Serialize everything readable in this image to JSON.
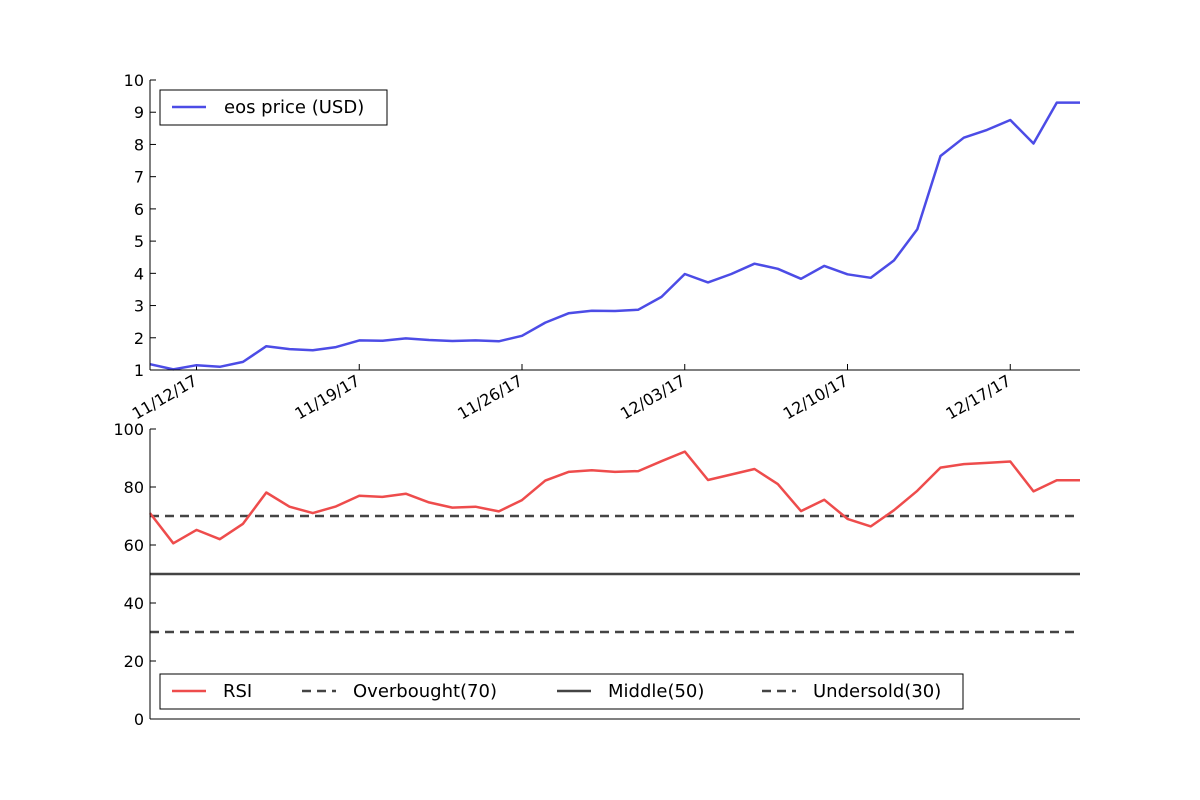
{
  "chart_data": [
    {
      "type": "line",
      "panel": "price",
      "x_dates": [
        "11/10/17",
        "11/11/17",
        "11/12/17",
        "11/13/17",
        "11/14/17",
        "11/15/17",
        "11/16/17",
        "11/17/17",
        "11/18/17",
        "11/19/17",
        "11/20/17",
        "11/21/17",
        "11/22/17",
        "11/23/17",
        "11/24/17",
        "11/25/17",
        "11/26/17",
        "11/27/17",
        "11/28/17",
        "11/29/17",
        "11/30/17",
        "12/01/17",
        "12/02/17",
        "12/03/17",
        "12/04/17",
        "12/05/17",
        "12/06/17",
        "12/07/17",
        "12/08/17",
        "12/09/17",
        "12/10/17",
        "12/11/17",
        "12/12/17",
        "12/13/17",
        "12/14/17",
        "12/15/17",
        "12/16/17",
        "12/17/17",
        "12/18/17",
        "12/19/17",
        "12/20/17"
      ],
      "series": [
        {
          "name": "eos price (USD)",
          "color": "#4c4ce6",
          "values": [
            1.18,
            1.02,
            1.15,
            1.1,
            1.25,
            1.74,
            1.65,
            1.61,
            1.71,
            1.92,
            1.91,
            1.98,
            1.93,
            1.9,
            1.92,
            1.89,
            2.06,
            2.47,
            2.76,
            2.84,
            2.83,
            2.87,
            3.27,
            3.98,
            3.72,
            3.98,
            4.3,
            4.14,
            3.83,
            4.23,
            3.97,
            3.86,
            4.4,
            5.37,
            7.64,
            8.21,
            8.45,
            8.76,
            8.03,
            9.3,
            9.3
          ]
        }
      ],
      "x_tick_labels": [
        "11/12/17",
        "11/19/17",
        "11/26/17",
        "12/03/17",
        "12/10/17",
        "12/17/17"
      ],
      "y_ticks": [
        1,
        2,
        3,
        4,
        5,
        6,
        7,
        8,
        9,
        10
      ],
      "ylim": [
        1,
        10
      ],
      "legend_position": "upper-left"
    },
    {
      "type": "line",
      "panel": "rsi",
      "series": [
        {
          "name": "RSI",
          "color": "#ee4c4c",
          "values": [
            71.0,
            60.6,
            65.2,
            62.0,
            67.3,
            78.1,
            73.2,
            71.0,
            73.3,
            77.0,
            76.6,
            77.7,
            74.7,
            72.9,
            73.2,
            71.6,
            75.5,
            82.2,
            85.2,
            85.8,
            85.2,
            85.5,
            88.9,
            92.2,
            82.4,
            84.3,
            86.2,
            81.0,
            71.7,
            75.6,
            69.0,
            66.4,
            72.0,
            78.7,
            86.7,
            87.9,
            88.3,
            88.8,
            78.5,
            82.3,
            82.3
          ]
        },
        {
          "name": "Overbought(70)",
          "color": "#444444",
          "style": "dashed",
          "value": 70
        },
        {
          "name": "Middle(50)",
          "color": "#444444",
          "style": "solid",
          "value": 50
        },
        {
          "name": "Undersold(30)",
          "color": "#444444",
          "style": "dashed",
          "value": 30
        }
      ],
      "y_ticks": [
        0,
        20,
        40,
        60,
        80,
        100
      ],
      "ylim": [
        0,
        100
      ],
      "legend_position": "lower-left"
    }
  ]
}
